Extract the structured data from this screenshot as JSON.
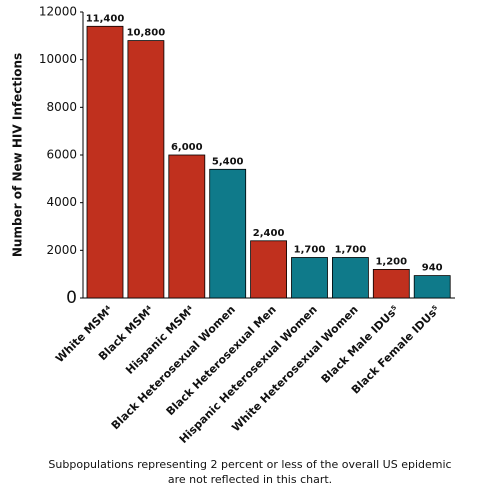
{
  "chart_data": {
    "type": "bar",
    "y_label": "Number of New HIV Infections",
    "categories": [
      "White MSM⁴",
      "Black MSM⁴",
      "Hispanic MSM⁴",
      "Black Heterosexual Women",
      "Black Heterosexual Men",
      "Hispanic Heterosexual Women",
      "White Heterosexual Women",
      "Black Male IDUs⁵",
      "Black Female IDUs⁵"
    ],
    "values": [
      11400,
      10800,
      6000,
      5400,
      2400,
      1700,
      1700,
      1200,
      940
    ],
    "value_labels": [
      "11,400",
      "10,800",
      "6,000",
      "5,400",
      "2,400",
      "1,700",
      "1,700",
      "1,200",
      "940"
    ],
    "colors": [
      "#c0301e",
      "#c0301e",
      "#c0301e",
      "#0f7a8a",
      "#c0301e",
      "#0f7a8a",
      "#0f7a8a",
      "#c0301e",
      "#0f7a8a"
    ],
    "ylim": [
      0,
      12000
    ],
    "yticks": [
      0,
      2000,
      4000,
      6000,
      8000,
      10000,
      12000
    ],
    "footnote": [
      "Subpopulations representing 2 percent or less of the overall US epidemic",
      "are not reflected in this chart."
    ]
  }
}
